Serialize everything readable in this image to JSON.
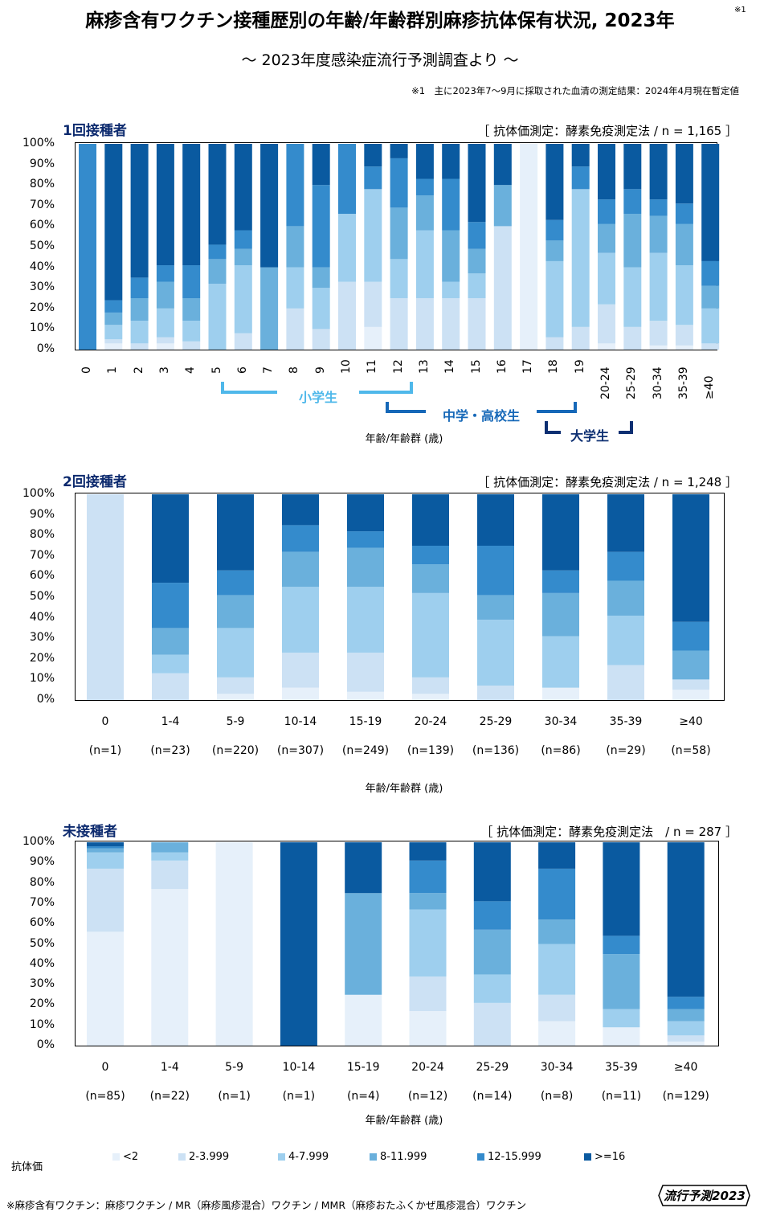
{
  "title": "麻疹含有ワクチン接種歴別の年齢/年齢群別麻疹抗体保有状況, 2023年",
  "title_note": "※1",
  "subtitle": "～ 2023年度感染症流行予測調査より ～",
  "footnote_top": "※1　主に2023年7～9月に採取された血清の測定結果：2024年4月現在暫定値",
  "colors": [
    "#e6f0fa",
    "#cce1f4",
    "#9ecfee",
    "#6ab0dc",
    "#348bcc",
    "#0a5aa0"
  ],
  "legend": {
    "title": "抗体価",
    "items": [
      "<2",
      "2-3.999",
      "4-7.999",
      "8-11.999",
      "12-15.999",
      ">=16"
    ]
  },
  "brackets": {
    "elementary": "小学生",
    "middle_high": "中学・高校生",
    "university": "大学生"
  },
  "footnote_bottom": "※麻疹含有ワクチン：麻疹ワクチン / MR（麻疹風疹混合）ワクチン / MMR（麻疹おたふくかぜ風疹混合）ワクチン",
  "logo": "流行予測2023",
  "chart_data": [
    {
      "type": "bar",
      "stacked": true,
      "title": "1回接種者",
      "method": "［ 抗体価測定：酵素免疫測定法 / n = 1,165 ］",
      "xlabel": "年齢/年齢群 (歳)",
      "ylim": [
        0,
        100
      ],
      "yticks": [
        "0%",
        "10%",
        "20%",
        "30%",
        "40%",
        "50%",
        "60%",
        "70%",
        "80%",
        "90%",
        "100%"
      ],
      "categories": [
        "0",
        "1",
        "2",
        "3",
        "4",
        "5",
        "6",
        "7",
        "8",
        "9",
        "10",
        "11",
        "12",
        "13",
        "14",
        "15",
        "16",
        "17",
        "18",
        "19",
        "20-24",
        "25-29",
        "30-34",
        "35-39",
        "≥40"
      ],
      "series": [
        {
          "name": "<2",
          "values": [
            0,
            3,
            0,
            3,
            0,
            0,
            0,
            0,
            0,
            0,
            0,
            11,
            0,
            0,
            0,
            0,
            0,
            100,
            0,
            0,
            3,
            0,
            2,
            2,
            0
          ]
        },
        {
          "name": "2-3.999",
          "values": [
            0,
            2,
            3,
            3,
            4,
            0,
            8,
            0,
            20,
            10,
            33,
            22,
            25,
            25,
            25,
            25,
            60,
            0,
            6,
            11,
            19,
            11,
            12,
            10,
            3
          ]
        },
        {
          "name": "4-7.999",
          "values": [
            0,
            7,
            11,
            14,
            10,
            32,
            33,
            0,
            20,
            20,
            33,
            45,
            19,
            33,
            8,
            12,
            0,
            0,
            37,
            67,
            25,
            29,
            33,
            29,
            17
          ]
        },
        {
          "name": "8-11.999",
          "values": [
            0,
            6,
            11,
            13,
            11,
            12,
            8,
            40,
            20,
            10,
            0,
            0,
            25,
            17,
            25,
            12,
            20,
            0,
            10,
            0,
            14,
            26,
            18,
            20,
            11
          ]
        },
        {
          "name": "12-15.999",
          "values": [
            100,
            6,
            10,
            8,
            16,
            7,
            9,
            0,
            40,
            40,
            34,
            11,
            24,
            8,
            25,
            13,
            0,
            0,
            10,
            11,
            12,
            12,
            8,
            10,
            12
          ]
        },
        {
          "name": ">=16",
          "values": [
            0,
            76,
            65,
            59,
            59,
            49,
            42,
            60,
            0,
            20,
            0,
            11,
            7,
            17,
            17,
            38,
            20,
            0,
            37,
            11,
            27,
            22,
            27,
            29,
            57
          ]
        }
      ]
    },
    {
      "type": "bar",
      "stacked": true,
      "title": "2回接種者",
      "method": "［ 抗体価測定：酵素免疫測定法 / n = 1,248 ］",
      "xlabel": "年齢/年齢群 (歳)",
      "ylim": [
        0,
        100
      ],
      "yticks": [
        "0%",
        "10%",
        "20%",
        "30%",
        "40%",
        "50%",
        "60%",
        "70%",
        "80%",
        "90%",
        "100%"
      ],
      "categories": [
        "0",
        "1-4",
        "5-9",
        "10-14",
        "15-19",
        "20-24",
        "25-29",
        "30-34",
        "35-39",
        "≥40"
      ],
      "counts": [
        "(n=1)",
        "(n=23)",
        "(n=220)",
        "(n=307)",
        "(n=249)",
        "(n=139)",
        "(n=136)",
        "(n=86)",
        "(n=29)",
        "(n=58)"
      ],
      "series": [
        {
          "name": "<2",
          "values": [
            0,
            0,
            3,
            6,
            4,
            3,
            0,
            6,
            0,
            5
          ]
        },
        {
          "name": "2-3.999",
          "values": [
            100,
            13,
            8,
            17,
            19,
            8,
            7,
            0,
            17,
            5
          ]
        },
        {
          "name": "4-7.999",
          "values": [
            0,
            9,
            24,
            32,
            32,
            41,
            32,
            25,
            24,
            0
          ]
        },
        {
          "name": "8-11.999",
          "values": [
            0,
            13,
            16,
            17,
            19,
            14,
            12,
            21,
            17,
            14
          ]
        },
        {
          "name": "12-15.999",
          "values": [
            0,
            22,
            12,
            13,
            8,
            9,
            24,
            11,
            14,
            14
          ]
        },
        {
          "name": ">=16",
          "values": [
            0,
            43,
            37,
            15,
            18,
            25,
            25,
            37,
            28,
            62
          ]
        }
      ]
    },
    {
      "type": "bar",
      "stacked": true,
      "title": "未接種者",
      "method": "［ 抗体価測定：酵素免疫測定法　/ n = 287 ］",
      "xlabel": "年齢/年齢群 (歳)",
      "ylim": [
        0,
        100
      ],
      "yticks": [
        "0%",
        "10%",
        "20%",
        "30%",
        "40%",
        "50%",
        "60%",
        "70%",
        "80%",
        "90%",
        "100%"
      ],
      "categories": [
        "0",
        "1-4",
        "5-9",
        "10-14",
        "15-19",
        "20-24",
        "25-29",
        "30-34",
        "35-39",
        "≥40"
      ],
      "counts": [
        "(n=85)",
        "(n=22)",
        "(n=1)",
        "(n=1)",
        "(n=4)",
        "(n=12)",
        "(n=14)",
        "(n=8)",
        "(n=11)",
        "(n=129)"
      ],
      "series": [
        {
          "name": "<2",
          "values": [
            56,
            77,
            100,
            0,
            25,
            17,
            0,
            12,
            9,
            2
          ]
        },
        {
          "name": "2-3.999",
          "values": [
            31,
            14,
            0,
            0,
            0,
            17,
            21,
            13,
            0,
            3
          ]
        },
        {
          "name": "4-7.999",
          "values": [
            8,
            4,
            0,
            0,
            0,
            33,
            14,
            25,
            9,
            7
          ]
        },
        {
          "name": "8-11.999",
          "values": [
            2,
            5,
            0,
            0,
            50,
            8,
            22,
            12,
            27,
            6
          ]
        },
        {
          "name": "12-15.999",
          "values": [
            1,
            0,
            0,
            0,
            0,
            16,
            14,
            25,
            9,
            6
          ]
        },
        {
          "name": ">=16",
          "values": [
            2,
            0,
            0,
            100,
            25,
            9,
            29,
            13,
            46,
            76
          ]
        }
      ]
    }
  ]
}
